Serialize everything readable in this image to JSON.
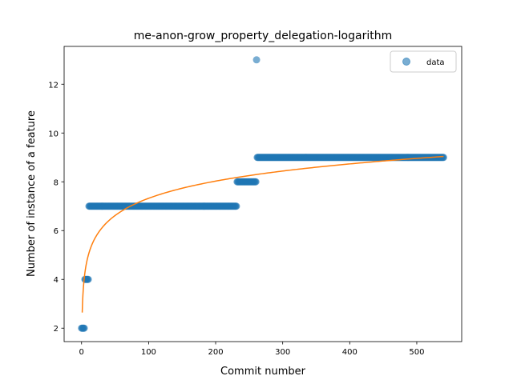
{
  "chart_data": {
    "type": "scatter",
    "title": "me-anon-grow_property_delegation-logarithm",
    "xlabel": "Commit number",
    "ylabel": "Number of instance of a feature",
    "xlim": [
      -26,
      567
    ],
    "ylim": [
      1.45,
      13.55
    ],
    "xticks": [
      0,
      100,
      200,
      300,
      400,
      500
    ],
    "yticks": [
      2,
      4,
      6,
      8,
      10,
      12
    ],
    "grid": false,
    "legend": {
      "position": "top-right",
      "entries": [
        "data"
      ]
    },
    "series": [
      {
        "name": "data",
        "kind": "scatter",
        "color": "#1f77b4",
        "segments": [
          {
            "x_start": 0,
            "x_end": 4,
            "y": 2
          },
          {
            "x_start": 5,
            "x_end": 10,
            "y": 4
          },
          {
            "x_start": 11,
            "x_end": 231,
            "y": 7
          },
          {
            "x_start": 232,
            "x_end": 260,
            "y": 8
          },
          {
            "x_start": 262,
            "x_end": 540,
            "y": 9
          }
        ],
        "outliers": [
          {
            "x": 261,
            "y": 13
          }
        ]
      },
      {
        "name": "",
        "kind": "line",
        "color": "#ff7f0e",
        "model": "y = a + b*ln(x)",
        "a": 2.64,
        "b": 1.017,
        "x_range": [
          1,
          540
        ]
      }
    ]
  }
}
